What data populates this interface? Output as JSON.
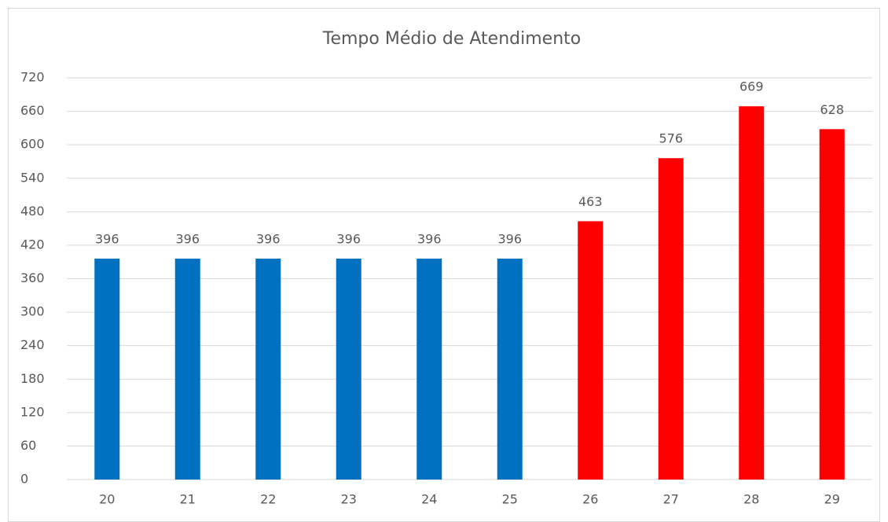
{
  "chart_data": {
    "type": "bar",
    "title": "Tempo Médio de Atendimento",
    "categories": [
      "20",
      "21",
      "22",
      "23",
      "24",
      "25",
      "26",
      "27",
      "28",
      "29"
    ],
    "values": [
      396,
      396,
      396,
      396,
      396,
      396,
      463,
      576,
      669,
      628
    ],
    "colors": [
      "#0070c0",
      "#0070c0",
      "#0070c0",
      "#0070c0",
      "#0070c0",
      "#0070c0",
      "#ff0000",
      "#ff0000",
      "#ff0000",
      "#ff0000"
    ],
    "ylim": [
      0,
      720
    ],
    "yticks": [
      0,
      60,
      120,
      180,
      240,
      300,
      360,
      420,
      480,
      540,
      600,
      660,
      720
    ],
    "grid": true
  }
}
